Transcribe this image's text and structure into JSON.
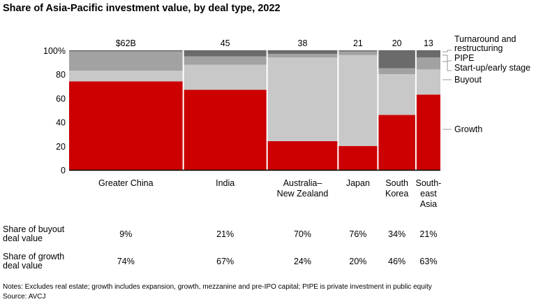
{
  "chart_data": {
    "type": "marimekko",
    "title": "Share of Asia-Pacific investment value, by deal type, 2022",
    "categories": [
      "Greater China",
      "India",
      "Australia–\nNew Zealand",
      "Japan",
      "South\nKorea",
      "South-\neast\nAsia"
    ],
    "widths": [
      62,
      45,
      38,
      21,
      20,
      13
    ],
    "width_labels": [
      "$62B",
      "45",
      "38",
      "21",
      "20",
      "13"
    ],
    "ylim": [
      0,
      100
    ],
    "yticks": [
      "0",
      "20",
      "40",
      "60",
      "80",
      "100%"
    ],
    "series": [
      {
        "name": "Growth",
        "color": "#cc0000",
        "values": [
          74,
          67,
          24,
          20,
          46,
          63
        ]
      },
      {
        "name": "Buyout",
        "color": "#c8c8c8",
        "values": [
          9,
          21,
          70,
          76,
          34,
          21
        ]
      },
      {
        "name": "Start-up/early stage",
        "color": "#a2a2a2",
        "values": [
          16,
          7,
          3,
          3,
          5,
          10
        ]
      },
      {
        "name": "PIPE",
        "color": "#6b6b6b",
        "values": [
          0.3,
          4,
          2,
          0.5,
          14,
          5
        ]
      },
      {
        "name": "Turnaround and\nrestructuring",
        "color": "#555555",
        "values": [
          0.7,
          1,
          1,
          0.5,
          1,
          1
        ]
      }
    ]
  },
  "table": {
    "rows": [
      {
        "label": "Share of buyout\ndeal value",
        "values": [
          "9%",
          "21%",
          "70%",
          "76%",
          "34%",
          "21%"
        ]
      },
      {
        "label": "Share of growth\ndeal value",
        "values": [
          "74%",
          "67%",
          "24%",
          "20%",
          "46%",
          "63%"
        ]
      }
    ]
  },
  "notes": "Notes: Excludes real estate; growth includes expansion, growth, mezzanine and pre-IPO capital; PIPE is private investment in public equity",
  "source": "Source: AVCJ"
}
